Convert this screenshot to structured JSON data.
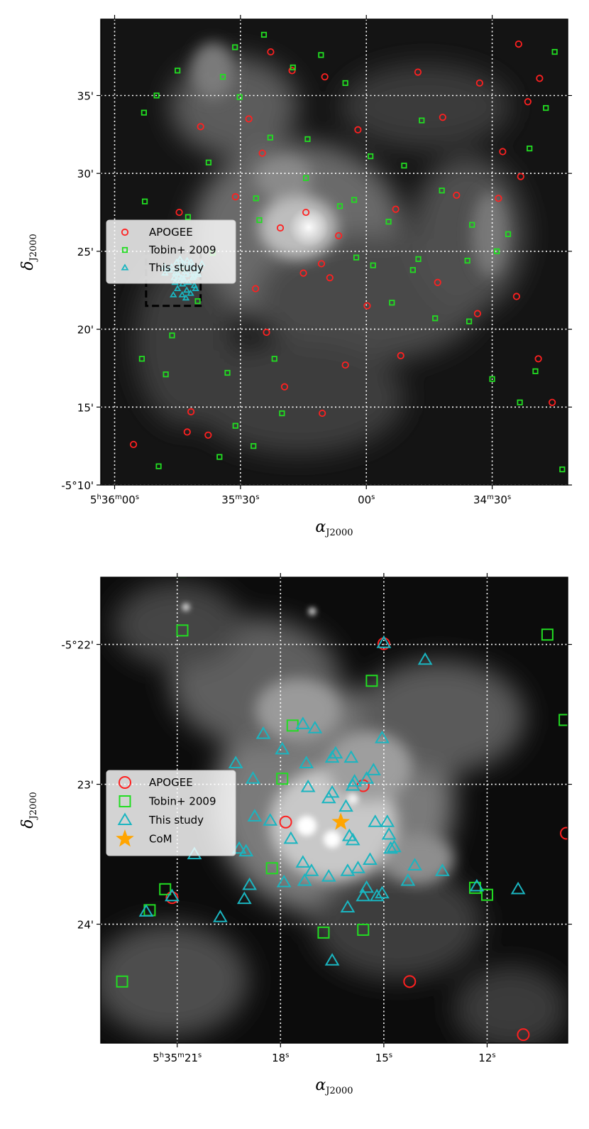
{
  "chart_data": [
    {
      "type": "scatter",
      "panel": "top",
      "xlabel": "α",
      "xlabel_sub": "J2000",
      "ylabel": "δ",
      "ylabel_sub": "J2000",
      "x_ticks": [
        {
          "text": "5h36m00s",
          "parts": [
            [
              "5",
              "n"
            ],
            [
              "h",
              "s"
            ],
            [
              "36",
              "n"
            ],
            [
              "m",
              "s"
            ],
            [
              "00",
              "n"
            ],
            [
              "s",
              "s"
            ]
          ],
          "ra_sec": 0
        },
        {
          "text": "35m30s",
          "parts": [
            [
              "35",
              "n"
            ],
            [
              "m",
              "s"
            ],
            [
              "30",
              "n"
            ],
            [
              "s",
              "s"
            ]
          ],
          "ra_sec": 30
        },
        {
          "text": "00s",
          "parts": [
            [
              "00",
              "n"
            ],
            [
              "s",
              "s"
            ]
          ],
          "ra_sec": 60
        },
        {
          "text": "34m30s",
          "parts": [
            [
              "34",
              "n"
            ],
            [
              "m",
              "s"
            ],
            [
              "30",
              "n"
            ],
            [
              "s",
              "s"
            ]
          ],
          "ra_sec": 90
        }
      ],
      "y_ticks": [
        {
          "text": "-5°10'",
          "dec_min": 10
        },
        {
          "text": "15'",
          "dec_min": 15
        },
        {
          "text": "20'",
          "dec_min": 20
        },
        {
          "text": "25'",
          "dec_min": 25
        },
        {
          "text": "30'",
          "dec_min": 30
        },
        {
          "text": "35'",
          "dec_min": 35
        }
      ],
      "xlim": [
        -3.3,
        108
      ],
      "ylim": [
        39.9,
        10.0
      ],
      "grid": true,
      "legend_position": "middle-left",
      "legend": [
        {
          "label": "APOGEE",
          "marker": "circle",
          "color": "#ff2020"
        },
        {
          "label": "Tobin+ 2009",
          "marker": "square",
          "color": "#22dd22"
        },
        {
          "label": "This study",
          "marker": "triangle",
          "color": "#1ab5c0"
        }
      ],
      "zoom_box": {
        "ra_sec": [
          20.5,
          7.5
        ],
        "dec_min": [
          21.5,
          24.9
        ]
      },
      "series": [
        {
          "name": "APOGEE",
          "marker": "circle",
          "color": "#ff2020",
          "x": [
            4.5,
            17.3,
            22.3,
            36.2,
            33.6,
            40.5,
            55.0,
            68.2,
            86.5,
            95.8,
            91.5,
            96.8,
            20.5,
            58.0,
            50.1,
            72.3,
            78.2,
            98.5,
            67.0,
            81.5,
            92.5,
            101.3,
            96.3,
            87.0,
            42.3,
            35.2,
            28.8,
            15.4,
            45.6,
            60.2,
            77.0,
            101.0,
            104.3,
            51.3,
            39.5,
            32.0,
            45.0,
            49.3,
            53.4,
            18.2,
            49.5,
            37.2
          ],
          "y": [
            12.6,
            13.4,
            13.2,
            19.8,
            22.6,
            16.3,
            17.7,
            18.3,
            21.0,
            22.1,
            28.4,
            29.8,
            33.0,
            32.8,
            36.2,
            36.5,
            33.6,
            34.6,
            27.7,
            28.6,
            31.4,
            36.1,
            38.3,
            35.8,
            36.6,
            31.3,
            28.5,
            27.5,
            27.5,
            21.5,
            23.0,
            18.1,
            15.3,
            23.3,
            26.5,
            33.5,
            23.6,
            24.2,
            26.0,
            14.7,
            14.6,
            37.8
          ]
        },
        {
          "name": "Tobin+ 2009",
          "marker": "square",
          "color": "#22dd22",
          "x": [
            10.5,
            25.0,
            28.8,
            33.1,
            6.5,
            13.7,
            19.8,
            16.2,
            23.4,
            34.5,
            33.7,
            7.0,
            10.0,
            15.0,
            29.8,
            37.1,
            45.6,
            53.7,
            57.6,
            61.6,
            66.1,
            71.1,
            76.4,
            84.5,
            90.0,
            96.6,
            100.3,
            106.7,
            39.9,
            38.1,
            26.9,
            12.2,
            61.0,
            55.0,
            49.2,
            69.0,
            73.2,
            98.9,
            102.8,
            104.9,
            78.0,
            85.2,
            93.8,
            84.1,
            91.1,
            72.4,
            65.3,
            57.1,
            46.0,
            42.5,
            35.6,
            28.7,
            22.4,
            17.5,
            7.2,
            25.8
          ],
          "y": [
            11.2,
            11.8,
            13.8,
            12.5,
            18.1,
            19.6,
            21.8,
            23.9,
            24.9,
            27.0,
            28.4,
            33.9,
            35.0,
            36.6,
            34.9,
            32.3,
            29.7,
            27.9,
            24.6,
            24.1,
            21.7,
            23.8,
            20.7,
            20.5,
            16.8,
            15.3,
            17.3,
            11.0,
            14.6,
            18.1,
            17.2,
            17.1,
            31.1,
            35.8,
            37.6,
            30.5,
            33.4,
            31.6,
            34.2,
            37.8,
            28.9,
            26.7,
            26.1,
            24.4,
            25.0,
            24.5,
            26.9,
            28.3,
            32.2,
            36.8,
            38.9,
            38.1,
            30.7,
            27.2,
            28.2,
            36.2
          ]
        },
        {
          "name": "This study",
          "marker": "triangle",
          "color": "#1ab5c0",
          "x": [
            19.3,
            18.1,
            17.2,
            16.2,
            15.0,
            14.0,
            18.6,
            17.6,
            16.5,
            15.6,
            15.3,
            14.4,
            19.8,
            18.9,
            18.0,
            17.0,
            16.0,
            15.0,
            14.2,
            13.1,
            12.0,
            20.3,
            19.5,
            18.5,
            17.7,
            16.8,
            16.0,
            15.3,
            14.5,
            13.6,
            12.7,
            11.9,
            20.8,
            19.9,
            19.0,
            18.2,
            17.3,
            16.4,
            15.6,
            14.8,
            17.0,
            16.1
          ],
          "y": [
            22.6,
            22.3,
            22.5,
            22.9,
            22.6,
            22.2,
            23.3,
            23.0,
            23.2,
            23.1,
            23.4,
            23.0,
            23.6,
            23.4,
            23.6,
            23.5,
            23.3,
            23.6,
            23.3,
            23.8,
            23.6,
            23.9,
            23.8,
            24.0,
            24.0,
            23.7,
            24.1,
            23.9,
            23.6,
            24.0,
            23.8,
            24.0,
            24.2,
            23.5,
            22.8,
            24.3,
            24.4,
            24.2,
            24.5,
            24.3,
            22.0,
            22.2
          ]
        }
      ]
    },
    {
      "type": "scatter",
      "panel": "bottom",
      "xlabel": "α",
      "xlabel_sub": "J2000",
      "ylabel": "δ",
      "ylabel_sub": "J2000",
      "x_ticks": [
        {
          "text": "5h35m21s",
          "parts": [
            [
              "5",
              "n"
            ],
            [
              "h",
              "s"
            ],
            [
              "35",
              "n"
            ],
            [
              "m",
              "s"
            ],
            [
              "21",
              "n"
            ],
            [
              "s",
              "s"
            ]
          ],
          "ra_sec": 21
        },
        {
          "text": "18s",
          "parts": [
            [
              "18",
              "n"
            ],
            [
              "s",
              "s"
            ]
          ],
          "ra_sec": 18
        },
        {
          "text": "15s",
          "parts": [
            [
              "15",
              "n"
            ],
            [
              "s",
              "s"
            ]
          ],
          "ra_sec": 15
        },
        {
          "text": "12s",
          "parts": [
            [
              "12",
              "n"
            ],
            [
              "s",
              "s"
            ]
          ],
          "ra_sec": 12
        }
      ],
      "y_ticks": [
        {
          "text": "-5°22'",
          "dec_min": 22
        },
        {
          "text": "23'",
          "dec_min": 23
        },
        {
          "text": "24'",
          "dec_min": 24
        }
      ],
      "xlim": [
        23.22,
        9.66
      ],
      "ylim": [
        21.52,
        24.85
      ],
      "grid": true,
      "legend_position": "middle-left",
      "legend": [
        {
          "label": "APOGEE",
          "marker": "circle",
          "color": "#ff2020"
        },
        {
          "label": "Tobin+ 2009",
          "marker": "square",
          "color": "#22dd22"
        },
        {
          "label": "This study",
          "marker": "triangle",
          "color": "#1ab5c0"
        },
        {
          "label": "CoM",
          "marker": "star",
          "color": "#ffa500"
        }
      ],
      "series": [
        {
          "name": "APOGEE",
          "marker": "circle",
          "color": "#ff2020",
          "x": [
            15.0,
            15.6,
            17.85,
            21.15,
            14.25,
            10.95,
            9.7
          ],
          "y": [
            21.995,
            23.01,
            23.27,
            23.81,
            24.41,
            24.79,
            23.35
          ]
        },
        {
          "name": "Tobin+ 2009",
          "marker": "square",
          "color": "#22dd22",
          "x": [
            20.85,
            15.35,
            17.65,
            17.95,
            18.25,
            21.35,
            21.8,
            22.6,
            16.75,
            15.6,
            12.35,
            12.0,
            10.25,
            9.75,
            20.9
          ],
          "y": [
            21.9,
            22.26,
            22.58,
            22.96,
            23.6,
            23.75,
            23.9,
            24.41,
            24.06,
            24.04,
            23.74,
            23.79,
            21.93,
            22.54,
            21.48
          ]
        },
        {
          "name": "This study",
          "marker": "triangle",
          "color": "#1ab5c0",
          "x": [
            15.0,
            13.8,
            18.5,
            17.95,
            17.35,
            17.0,
            16.5,
            15.05,
            17.25,
            16.4,
            15.95,
            15.5,
            15.3,
            19.3,
            18.8,
            18.75,
            18.3,
            17.2,
            16.6,
            16.1,
            15.25,
            14.85,
            14.7,
            16.0,
            15.9,
            20.5,
            19.2,
            19.0,
            17.35,
            17.1,
            16.05,
            15.5,
            14.3,
            13.3,
            21.15,
            19.05,
            19.75,
            16.05,
            15.75,
            15.4,
            14.9,
            14.8,
            21.9,
            16.5,
            15.9,
            15.85,
            18.9,
            17.7,
            11.1,
            12.3,
            17.3,
            16.6,
            14.1,
            15.05,
            15.2,
            17.9,
            16.5,
            15.6
          ],
          "y": [
            21.99,
            22.11,
            22.64,
            22.75,
            22.57,
            22.6,
            22.81,
            22.67,
            22.85,
            22.78,
            22.81,
            22.96,
            22.9,
            22.85,
            22.96,
            23.23,
            23.26,
            23.02,
            23.1,
            23.16,
            23.27,
            23.36,
            23.45,
            23.37,
            23.4,
            23.5,
            23.46,
            23.48,
            23.56,
            23.62,
            23.62,
            23.74,
            23.69,
            23.62,
            23.8,
            23.82,
            23.95,
            23.88,
            23.6,
            23.54,
            23.27,
            23.46,
            23.91,
            23.06,
            23.01,
            22.98,
            23.72,
            23.39,
            23.75,
            23.73,
            23.69,
            23.66,
            23.58,
            23.78,
            23.8,
            23.7,
            24.26,
            23.8
          ]
        },
        {
          "name": "CoM",
          "marker": "star",
          "color": "#ffa500",
          "x": [
            16.25
          ],
          "y": [
            23.27
          ]
        }
      ]
    }
  ]
}
